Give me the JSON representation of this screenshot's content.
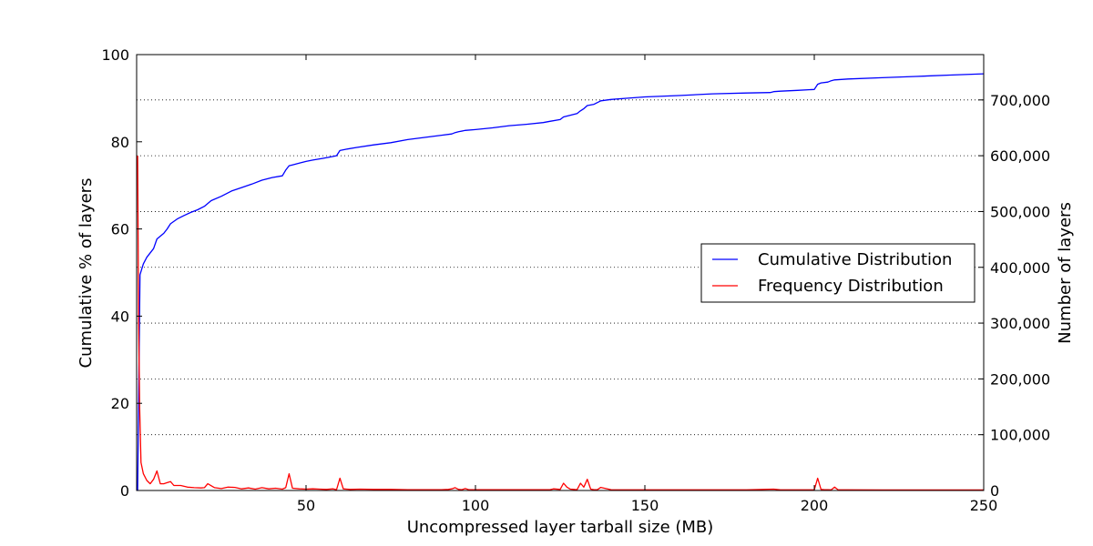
{
  "chart_data": {
    "type": "line",
    "xlabel": "Uncompressed layer tarball size (MB)",
    "ylabel_left": "Cumulative % of layers",
    "ylabel_right": "Number of layers",
    "xlim": [
      0,
      250
    ],
    "ylim_left": [
      0,
      100
    ],
    "ylim_right": [
      0,
      781250
    ],
    "x_ticks": [
      50,
      100,
      150,
      200,
      250
    ],
    "x_tick_labels": [
      "50",
      "100",
      "150",
      "200",
      "250"
    ],
    "y_left_ticks": [
      0,
      20,
      40,
      60,
      80,
      100
    ],
    "y_left_tick_labels": [
      "0",
      "20",
      "40",
      "60",
      "80",
      "100"
    ],
    "y_right_ticks": [
      0,
      100000,
      200000,
      300000,
      400000,
      500000,
      600000,
      700000
    ],
    "y_right_tick_labels": [
      "0",
      "100,000",
      "200,000",
      "300,000",
      "400,000",
      "500,000",
      "600,000",
      "700,000"
    ],
    "grid": "horizontal dotted at right-axis ticks",
    "legend_position": "center-right",
    "series": [
      {
        "name": "Cumulative Distribution",
        "axis": "left",
        "color": "#0000ff",
        "x": [
          0.3,
          1,
          2,
          3,
          5,
          6,
          8,
          9,
          10,
          12,
          14,
          16,
          18,
          20,
          22,
          25,
          28,
          31,
          34,
          37,
          40,
          43,
          44,
          45,
          46,
          48,
          50,
          52,
          55,
          57,
          59,
          60,
          62,
          65,
          70,
          75,
          80,
          85,
          90,
          93,
          94,
          95,
          97,
          100,
          105,
          110,
          115,
          120,
          122,
          125,
          126,
          128,
          130,
          131,
          132,
          133,
          135,
          137,
          140,
          145,
          150,
          160,
          170,
          180,
          187,
          188,
          190,
          195,
          200,
          201,
          202,
          204,
          205,
          206,
          210,
          220,
          230,
          240,
          250
        ],
        "values": [
          0,
          49.5,
          52,
          53.5,
          55.5,
          57.7,
          59,
          60,
          61.2,
          62.3,
          63.1,
          63.8,
          64.4,
          65.2,
          66.5,
          67.5,
          68.7,
          69.5,
          70.3,
          71.2,
          71.8,
          72.2,
          73.5,
          74.5,
          74.7,
          75.1,
          75.5,
          75.8,
          76.2,
          76.5,
          76.8,
          78,
          78.3,
          78.7,
          79.3,
          79.8,
          80.5,
          81,
          81.5,
          81.8,
          82.1,
          82.3,
          82.6,
          82.8,
          83.2,
          83.7,
          84,
          84.4,
          84.7,
          85.1,
          85.7,
          86.1,
          86.5,
          87.1,
          87.6,
          88.3,
          88.6,
          89.4,
          89.7,
          90,
          90.3,
          90.6,
          91,
          91.2,
          91.3,
          91.5,
          91.6,
          91.8,
          92,
          93.2,
          93.5,
          93.7,
          94,
          94.2,
          94.4,
          94.7,
          95,
          95.3,
          95.6
        ]
      },
      {
        "name": "Frequency Distribution",
        "axis": "right",
        "color": "#ff0000",
        "x": [
          0.3,
          0.6,
          0.9,
          1.3,
          2,
          3,
          4,
          5,
          6,
          7,
          8,
          9,
          10,
          11,
          13,
          15,
          17,
          19,
          20,
          21,
          23,
          25,
          27,
          29,
          31,
          33,
          35,
          37,
          39,
          41,
          43,
          44,
          45,
          46,
          48,
          50,
          52,
          54,
          56,
          58,
          59,
          60,
          61,
          63,
          66,
          70,
          75,
          80,
          85,
          90,
          92,
          93,
          94,
          95,
          96,
          97,
          98,
          100,
          110,
          120,
          122,
          123,
          125,
          126,
          127,
          128,
          129,
          130,
          131,
          132,
          133,
          134,
          135,
          136,
          137,
          140,
          150,
          160,
          170,
          180,
          188,
          190,
          195,
          199,
          200,
          201,
          202,
          203,
          204,
          205,
          206,
          207,
          210,
          220,
          230,
          240,
          250
        ],
        "values": [
          600000,
          300000,
          150000,
          50000,
          30000,
          18000,
          12000,
          20000,
          35000,
          12000,
          12000,
          14000,
          16000,
          9000,
          9000,
          6000,
          5000,
          4500,
          5000,
          12000,
          5000,
          3500,
          6000,
          5500,
          3000,
          4500,
          2500,
          5000,
          3000,
          4000,
          2500,
          5000,
          30000,
          4000,
          3000,
          2500,
          3000,
          2500,
          2000,
          3000,
          1500,
          22000,
          3000,
          2000,
          2500,
          2000,
          2000,
          1500,
          1500,
          1500,
          2000,
          3000,
          5000,
          2000,
          1500,
          3500,
          1500,
          1500,
          1500,
          1500,
          1500,
          3000,
          2000,
          13000,
          6000,
          2500,
          2000,
          1500,
          13000,
          6000,
          20000,
          2500,
          1500,
          1500,
          5500,
          1500,
          1200,
          1200,
          1200,
          1200,
          2500,
          1200,
          1200,
          1200,
          1200,
          22000,
          2000,
          1500,
          1500,
          1200,
          6000,
          1500,
          1200,
          1000,
          1000,
          1000,
          1000
        ]
      }
    ]
  }
}
